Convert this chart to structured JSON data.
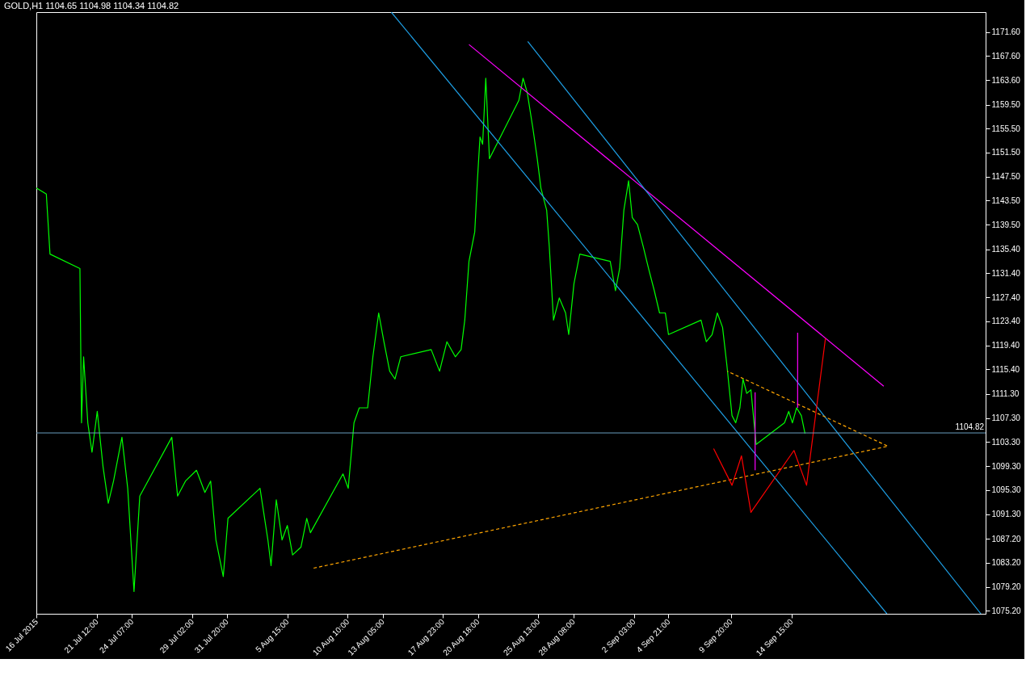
{
  "chart_data": {
    "type": "line",
    "title": "GOLD,H1  1104.65 1104.98 1104.34 1104.82",
    "xlim": [
      "2015-07-16T17:00",
      "2015-09-30T01:00"
    ],
    "ylim": [
      1074.7,
      1174.9
    ],
    "xticks": [
      {
        "value": "2015-07-16T17:00",
        "label": "16 Jul 2015"
      },
      {
        "value": "2015-07-21T12:00",
        "label": "21 Jul 12:00"
      },
      {
        "value": "2015-07-24T07:00",
        "label": "24 Jul 07:00"
      },
      {
        "value": "2015-07-29T02:00",
        "label": "29 Jul 02:00"
      },
      {
        "value": "2015-07-31T20:00",
        "label": "31 Jul 20:00"
      },
      {
        "value": "2015-08-05T15:00",
        "label": "5 Aug 15:00"
      },
      {
        "value": "2015-08-10T10:00",
        "label": "10 Aug 10:00"
      },
      {
        "value": "2015-08-13T05:00",
        "label": "13 Aug 05:00"
      },
      {
        "value": "2015-08-17T23:00",
        "label": "17 Aug 23:00"
      },
      {
        "value": "2015-08-20T18:00",
        "label": "20 Aug 18:00"
      },
      {
        "value": "2015-08-25T13:00",
        "label": "25 Aug 13:00"
      },
      {
        "value": "2015-08-28T08:00",
        "label": "28 Aug 08:00"
      },
      {
        "value": "2015-09-02T03:00",
        "label": "2 Sep 03:00"
      },
      {
        "value": "2015-09-04T21:00",
        "label": "4 Sep 21:00"
      },
      {
        "value": "2015-09-09T20:00",
        "label": "9 Sep 20:00"
      },
      {
        "value": "2015-09-14T15:00",
        "label": "14 Sep 15:00"
      }
    ],
    "yticks": [
      {
        "value": 1075.2,
        "label": "1075.20"
      },
      {
        "value": 1079.2,
        "label": "1079.20"
      },
      {
        "value": 1083.2,
        "label": "1083.20"
      },
      {
        "value": 1087.2,
        "label": "1087.20"
      },
      {
        "value": 1091.3,
        "label": "1091.30"
      },
      {
        "value": 1095.3,
        "label": "1095.30"
      },
      {
        "value": 1099.3,
        "label": "1099.30"
      },
      {
        "value": 1103.3,
        "label": "1103.30"
      },
      {
        "value": 1107.3,
        "label": "1107.30"
      },
      {
        "value": 1111.3,
        "label": "1111.30"
      },
      {
        "value": 1115.4,
        "label": "1115.40"
      },
      {
        "value": 1119.4,
        "label": "1119.40"
      },
      {
        "value": 1123.4,
        "label": "1123.40"
      },
      {
        "value": 1127.4,
        "label": "1127.40"
      },
      {
        "value": 1131.4,
        "label": "1131.40"
      },
      {
        "value": 1135.4,
        "label": "1135.40"
      },
      {
        "value": 1139.5,
        "label": "1139.50"
      },
      {
        "value": 1143.5,
        "label": "1143.50"
      },
      {
        "value": 1147.5,
        "label": "1147.50"
      },
      {
        "value": 1151.5,
        "label": "1151.50"
      },
      {
        "value": 1155.5,
        "label": "1155.50"
      },
      {
        "value": 1159.5,
        "label": "1159.50"
      },
      {
        "value": 1163.6,
        "label": "1163.60"
      },
      {
        "value": 1167.6,
        "label": "1167.60"
      },
      {
        "value": 1171.6,
        "label": "1171.60"
      }
    ],
    "grid": false,
    "legend": false,
    "ref_lines": [
      {
        "axis": "y",
        "value": 1104.82,
        "label": "1104.82",
        "color": "#6a9fc0"
      }
    ],
    "series": [
      {
        "color": "#00ff00",
        "x": [
          "2015-07-16T17:00",
          "2015-07-17T12:00",
          "2015-07-17T19:00",
          "2015-07-20T04:00",
          "2015-07-20T07:00",
          "2015-07-20T11:00",
          "2015-07-20T19:00",
          "2015-07-21T03:00",
          "2015-07-21T13:00",
          "2015-07-22T00:00",
          "2015-07-22T10:00",
          "2015-07-22T20:00",
          "2015-07-23T12:00",
          "2015-07-23T23:00",
          "2015-07-24T11:00",
          "2015-07-24T22:00",
          "2015-07-27T11:00",
          "2015-07-27T22:00",
          "2015-07-28T13:00",
          "2015-07-29T10:00",
          "2015-07-30T02:00",
          "2015-07-30T13:00",
          "2015-07-30T23:00",
          "2015-07-31T13:00",
          "2015-07-31T22:00",
          "2015-08-03T11:00",
          "2015-08-04T02:00",
          "2015-08-04T08:00",
          "2015-08-04T18:00",
          "2015-08-05T05:00",
          "2015-08-05T15:00",
          "2015-08-06T01:00",
          "2015-08-06T17:00",
          "2015-08-07T04:00",
          "2015-08-07T11:00",
          "2015-08-10T01:00",
          "2015-08-10T11:00",
          "2015-08-10T22:00",
          "2015-08-11T08:00",
          "2015-08-12T00:00",
          "2015-08-12T10:00",
          "2015-08-12T21:00",
          "2015-08-13T07:00",
          "2015-08-13T18:00",
          "2015-08-14T04:00",
          "2015-08-14T15:00",
          "2015-08-17T01:00",
          "2015-08-17T17:00",
          "2015-08-18T07:00",
          "2015-08-18T23:00",
          "2015-08-19T10:00",
          "2015-08-19T17:00",
          "2015-08-20T01:00",
          "2015-08-20T12:00",
          "2015-08-20T17:00",
          "2015-08-20T22:00",
          "2015-08-21T03:00",
          "2015-08-21T09:00",
          "2015-08-21T16:00",
          "2015-08-24T00:00",
          "2015-08-24T08:00",
          "2015-08-24T16:00",
          "2015-08-25T03:00",
          "2015-08-25T11:00",
          "2015-08-25T18:00",
          "2015-08-26T05:00",
          "2015-08-26T10:00",
          "2015-08-26T18:00",
          "2015-08-27T05:00",
          "2015-08-27T17:00",
          "2015-08-27T23:00",
          "2015-08-28T09:00",
          "2015-08-28T20:00",
          "2015-08-31T06:00",
          "2015-08-31T16:00",
          "2015-09-01T00:00",
          "2015-09-01T08:00",
          "2015-09-01T17:00",
          "2015-09-02T00:00",
          "2015-09-02T10:00",
          "2015-09-02T21:00",
          "2015-09-03T07:00",
          "2015-09-03T18:00",
          "2015-09-04T04:00",
          "2015-09-04T15:00",
          "2015-09-04T21:00",
          "2015-09-07T11:00",
          "2015-09-07T21:00",
          "2015-09-08T08:00",
          "2015-09-08T18:00",
          "2015-09-09T04:00",
          "2015-09-09T12:00",
          "2015-09-09T22:00",
          "2015-09-10T05:00",
          "2015-09-10T13:00",
          "2015-09-10T19:00",
          "2015-09-11T02:00",
          "2015-09-11T10:00",
          "2015-09-11T16:00",
          "2015-09-11T20:00",
          "2015-09-14T02:00",
          "2015-09-14T10:00",
          "2015-09-14T17:00",
          "2015-09-15T01:00",
          "2015-09-15T10:00",
          "2015-09-15T17:00"
        ],
        "values": [
          1145.6,
          1144.6,
          1134.6,
          1132.2,
          1106.5,
          1117.5,
          1106.5,
          1101.6,
          1108.4,
          1099.2,
          1093.1,
          1096.8,
          1104.1,
          1095.6,
          1078.4,
          1094.3,
          1104.1,
          1094.3,
          1096.8,
          1098.6,
          1094.9,
          1096.8,
          1087.0,
          1080.9,
          1090.6,
          1095.6,
          1087.0,
          1082.7,
          1093.7,
          1087.0,
          1089.4,
          1084.5,
          1085.8,
          1090.6,
          1088.2,
          1098.0,
          1095.6,
          1106.5,
          1109.0,
          1109.0,
          1117.5,
          1124.8,
          1120.0,
          1115.1,
          1113.8,
          1117.5,
          1118.7,
          1115.1,
          1120.0,
          1117.5,
          1118.7,
          1123.6,
          1133.4,
          1138.3,
          1146.8,
          1154.1,
          1152.9,
          1163.9,
          1150.5,
          1160.2,
          1163.9,
          1161.5,
          1155.4,
          1150.5,
          1145.6,
          1141.9,
          1135.8,
          1123.6,
          1127.3,
          1124.8,
          1121.2,
          1129.7,
          1134.6,
          1133.4,
          1128.5,
          1132.2,
          1141.9,
          1146.8,
          1140.7,
          1139.5,
          1135.8,
          1132.2,
          1128.5,
          1124.8,
          1124.8,
          1121.2,
          1123.6,
          1120.0,
          1121.2,
          1124.8,
          1122.4,
          1116.3,
          1107.7,
          1106.5,
          1109.0,
          1113.8,
          1111.4,
          1112.0,
          1106.5,
          1102.9,
          1106.5,
          1108.4,
          1106.5,
          1109.0,
          1107.7,
          1104.7
        ]
      },
      {
        "type": "line",
        "color": "#ff00ff",
        "x": [
          "2015-08-20T01:00",
          "2015-09-21T23:00"
        ],
        "values": [
          1169.5,
          1112.6
        ]
      },
      {
        "type": "line",
        "color": "#1ea0e6",
        "x": [
          "2015-08-13T21:00",
          "2015-09-22T05:00"
        ],
        "values": [
          1174.9,
          1074.7
        ]
      },
      {
        "type": "line",
        "color": "#1ea0e6",
        "x": [
          "2015-08-24T17:00",
          "2015-09-29T16:00"
        ],
        "values": [
          1170.0,
          1074.7
        ]
      },
      {
        "type": "line",
        "color": "#ffa500",
        "line_style": "dashed",
        "x": [
          "2015-08-07T17:00",
          "2015-09-22T07:00",
          "2015-09-09T13:00"
        ],
        "values": [
          1082.3,
          1102.6,
          1115.1
        ]
      },
      {
        "type": "line",
        "color": "#ff00ff",
        "x": [
          "2015-09-11T18:00",
          "2015-09-11T18:00"
        ],
        "values": [
          1111.6,
          1098.6
        ]
      },
      {
        "type": "line",
        "color": "#ff00ff",
        "x": [
          "2015-09-15T03:00",
          "2015-09-15T03:00"
        ],
        "values": [
          1121.5,
          1109.0
        ]
      },
      {
        "type": "line",
        "color": "#ff0000",
        "x": [
          "2015-09-08T11:00",
          "2015-09-09T22:00",
          "2015-09-10T16:00",
          "2015-09-11T10:00",
          "2015-09-14T20:00",
          "2015-09-15T20:00",
          "2015-09-17T08:00"
        ],
        "values": [
          1102.2,
          1096.1,
          1101.0,
          1091.6,
          1101.9,
          1096.1,
          1120.6
        ]
      }
    ]
  }
}
